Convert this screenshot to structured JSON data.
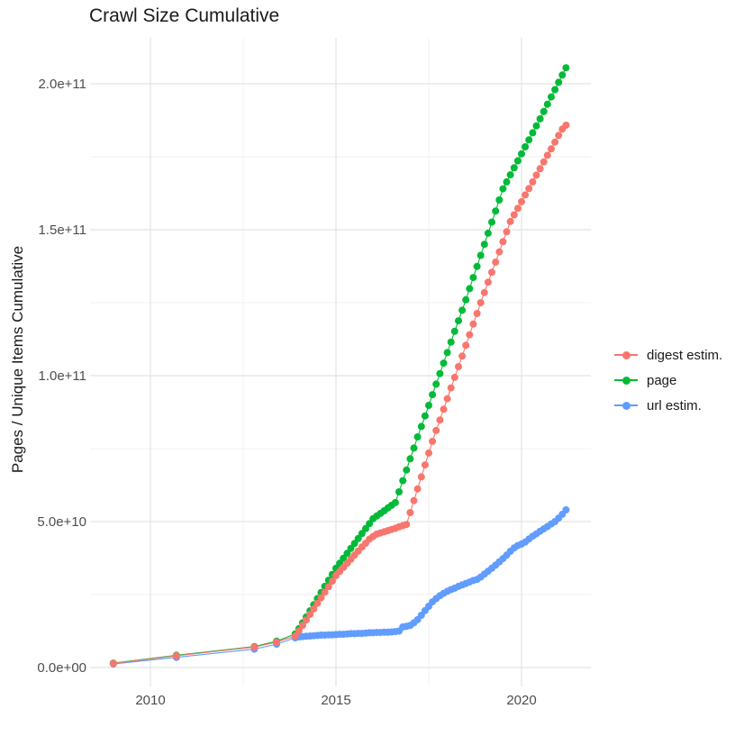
{
  "chart_data": {
    "type": "line",
    "title": "Crawl Size Cumulative",
    "xlabel": "",
    "ylabel": "Pages / Unique Items Cumulative",
    "grid": "on",
    "marker": "point",
    "x_range": [
      2008.4,
      2021.9
    ],
    "y_range": [
      -5000000000.0,
      216000000000.0
    ],
    "x_ticks": [
      {
        "value": 2010,
        "label": "2010"
      },
      {
        "value": 2015,
        "label": "2015"
      },
      {
        "value": 2020,
        "label": "2020"
      }
    ],
    "y_ticks": [
      {
        "value": 0.0,
        "label": "0.0e+00"
      },
      {
        "value": 50000000000.0,
        "label": "5.0e+10"
      },
      {
        "value": 100000000000.0,
        "label": "1.0e+11"
      },
      {
        "value": 150000000000.0,
        "label": "1.5e+11"
      },
      {
        "value": 200000000000.0,
        "label": "2.0e+11"
      }
    ],
    "legend": {
      "position": "right",
      "entries": [
        {
          "label": "digest estim.",
          "color": "#F8766D"
        },
        {
          "label": "page",
          "color": "#00BA38"
        },
        {
          "label": "url estim.",
          "color": "#619CFF"
        }
      ]
    },
    "series": [
      {
        "name": "digest estim.",
        "color": "#F8766D",
        "points": [
          [
            2009.0,
            1400000000.0
          ],
          [
            2010.7,
            4000000000.0
          ],
          [
            2012.8,
            7000000000.0
          ],
          [
            2013.4,
            8700000000.0
          ],
          [
            2013.9,
            10800000000.0
          ],
          [
            2014.0,
            12500000000.0
          ],
          [
            2014.1,
            14400000000.0
          ],
          [
            2014.2,
            16300000000.0
          ],
          [
            2014.3,
            18200000000.0
          ],
          [
            2014.4,
            20100000000.0
          ],
          [
            2014.5,
            22000000000.0
          ],
          [
            2014.6,
            23900000000.0
          ],
          [
            2014.7,
            25800000000.0
          ],
          [
            2014.8,
            27700000000.0
          ],
          [
            2014.9,
            29600000000.0
          ],
          [
            2015.0,
            31500000000.0
          ],
          [
            2015.1,
            32900000000.0
          ],
          [
            2015.2,
            34300000000.0
          ],
          [
            2015.3,
            35700000000.0
          ],
          [
            2015.4,
            37100000000.0
          ],
          [
            2015.5,
            38500000000.0
          ],
          [
            2015.6,
            39900000000.0
          ],
          [
            2015.7,
            41300000000.0
          ],
          [
            2015.8,
            42600000000.0
          ],
          [
            2015.9,
            44000000000.0
          ],
          [
            2016.0,
            44900000000.0
          ],
          [
            2016.1,
            45700000000.0
          ],
          [
            2016.2,
            46100000000.0
          ],
          [
            2016.3,
            46500000000.0
          ],
          [
            2016.4,
            46900000000.0
          ],
          [
            2016.5,
            47300000000.0
          ],
          [
            2016.6,
            47700000000.0
          ],
          [
            2016.7,
            48200000000.0
          ],
          [
            2016.8,
            48600000000.0
          ],
          [
            2016.9,
            49000000000.0
          ],
          [
            2017.0,
            53100000000.0
          ],
          [
            2017.1,
            57200000000.0
          ],
          [
            2017.2,
            61200000000.0
          ],
          [
            2017.3,
            65300000000.0
          ],
          [
            2017.4,
            69400000000.0
          ],
          [
            2017.5,
            73500000000.0
          ],
          [
            2017.6,
            77500000000.0
          ],
          [
            2017.7,
            81200000000.0
          ],
          [
            2017.8,
            84800000000.0
          ],
          [
            2017.9,
            88500000000.0
          ],
          [
            2018.0,
            92100000000.0
          ],
          [
            2018.1,
            95800000000.0
          ],
          [
            2018.2,
            99400000000.0
          ],
          [
            2018.3,
            103100000000.0
          ],
          [
            2018.4,
            106700000000.0
          ],
          [
            2018.5,
            110400000000.0
          ],
          [
            2018.6,
            114000000000.0
          ],
          [
            2018.7,
            117700000000.0
          ],
          [
            2018.8,
            121300000000.0
          ],
          [
            2018.9,
            125000000000.0
          ],
          [
            2019.0,
            128500000000.0
          ],
          [
            2019.1,
            132000000000.0
          ],
          [
            2019.2,
            135400000000.0
          ],
          [
            2019.3,
            138900000000.0
          ],
          [
            2019.4,
            142400000000.0
          ],
          [
            2019.5,
            145900000000.0
          ],
          [
            2019.6,
            149300000000.0
          ],
          [
            2019.7,
            152800000000.0
          ],
          [
            2019.8,
            155100000000.0
          ],
          [
            2019.9,
            157300000000.0
          ],
          [
            2020.0,
            159600000000.0
          ],
          [
            2020.1,
            161900000000.0
          ],
          [
            2020.2,
            164100000000.0
          ],
          [
            2020.3,
            166400000000.0
          ],
          [
            2020.4,
            168700000000.0
          ],
          [
            2020.5,
            170900000000.0
          ],
          [
            2020.6,
            173200000000.0
          ],
          [
            2020.7,
            175500000000.0
          ],
          [
            2020.8,
            177700000000.0
          ],
          [
            2020.9,
            180000000000.0
          ],
          [
            2021.0,
            182300000000.0
          ],
          [
            2021.1,
            184500000000.0
          ],
          [
            2021.2,
            185800000000.0
          ]
        ]
      },
      {
        "name": "page",
        "color": "#00BA38",
        "points": [
          [
            2009.0,
            1500000000.0
          ],
          [
            2010.7,
            4200000000.0
          ],
          [
            2012.8,
            7200000000.0
          ],
          [
            2013.4,
            9000000000.0
          ],
          [
            2013.9,
            11500000000.0
          ],
          [
            2014.0,
            13300000000.0
          ],
          [
            2014.1,
            15300000000.0
          ],
          [
            2014.2,
            17300000000.0
          ],
          [
            2014.3,
            19400000000.0
          ],
          [
            2014.4,
            21500000000.0
          ],
          [
            2014.5,
            23600000000.0
          ],
          [
            2014.6,
            25700000000.0
          ],
          [
            2014.7,
            27800000000.0
          ],
          [
            2014.8,
            29900000000.0
          ],
          [
            2014.9,
            31900000000.0
          ],
          [
            2015.0,
            34000000000.0
          ],
          [
            2015.1,
            35700000000.0
          ],
          [
            2015.2,
            37400000000.0
          ],
          [
            2015.3,
            39100000000.0
          ],
          [
            2015.4,
            40800000000.0
          ],
          [
            2015.5,
            42500000000.0
          ],
          [
            2015.6,
            44200000000.0
          ],
          [
            2015.7,
            45900000000.0
          ],
          [
            2015.8,
            47600000000.0
          ],
          [
            2015.9,
            49300000000.0
          ],
          [
            2016.0,
            51000000000.0
          ],
          [
            2016.1,
            51900000000.0
          ],
          [
            2016.2,
            52800000000.0
          ],
          [
            2016.3,
            53700000000.0
          ],
          [
            2016.4,
            54700000000.0
          ],
          [
            2016.5,
            55600000000.0
          ],
          [
            2016.6,
            56500000000.0
          ],
          [
            2016.7,
            60200000000.0
          ],
          [
            2016.8,
            64000000000.0
          ],
          [
            2016.9,
            67700000000.0
          ],
          [
            2017.0,
            71500000000.0
          ],
          [
            2017.1,
            75200000000.0
          ],
          [
            2017.2,
            79000000000.0
          ],
          [
            2017.3,
            82600000000.0
          ],
          [
            2017.4,
            86200000000.0
          ],
          [
            2017.5,
            89800000000.0
          ],
          [
            2017.6,
            93500000000.0
          ],
          [
            2017.7,
            97100000000.0
          ],
          [
            2017.8,
            100700000000.0
          ],
          [
            2017.9,
            104300000000.0
          ],
          [
            2018.0,
            107900000000.0
          ],
          [
            2018.1,
            111500000000.0
          ],
          [
            2018.2,
            115200000000.0
          ],
          [
            2018.3,
            118800000000.0
          ],
          [
            2018.4,
            122400000000.0
          ],
          [
            2018.5,
            126000000000.0
          ],
          [
            2018.6,
            129800000000.0
          ],
          [
            2018.7,
            133600000000.0
          ],
          [
            2018.8,
            137400000000.0
          ],
          [
            2018.9,
            141200000000.0
          ],
          [
            2019.0,
            145000000000.0
          ],
          [
            2019.1,
            148800000000.0
          ],
          [
            2019.2,
            152600000000.0
          ],
          [
            2019.3,
            156400000000.0
          ],
          [
            2019.4,
            160200000000.0
          ],
          [
            2019.5,
            164000000000.0
          ],
          [
            2019.6,
            166400000000.0
          ],
          [
            2019.7,
            168800000000.0
          ],
          [
            2019.8,
            171200000000.0
          ],
          [
            2019.9,
            173600000000.0
          ],
          [
            2020.0,
            176000000000.0
          ],
          [
            2020.1,
            178400000000.0
          ],
          [
            2020.2,
            180800000000.0
          ],
          [
            2020.3,
            183200000000.0
          ],
          [
            2020.4,
            185600000000.0
          ],
          [
            2020.5,
            188000000000.0
          ],
          [
            2020.6,
            190500000000.0
          ],
          [
            2020.7,
            193000000000.0
          ],
          [
            2020.8,
            195500000000.0
          ],
          [
            2020.9,
            198000000000.0
          ],
          [
            2021.0,
            200500000000.0
          ],
          [
            2021.1,
            203000000000.0
          ],
          [
            2021.2,
            205500000000.0
          ]
        ]
      },
      {
        "name": "url estim.",
        "color": "#619CFF",
        "points": [
          [
            2009.0,
            1200000000.0
          ],
          [
            2010.7,
            3500000000.0
          ],
          [
            2012.8,
            6300000000.0
          ],
          [
            2013.4,
            8000000000.0
          ],
          [
            2013.9,
            10200000000.0
          ],
          [
            2014.0,
            10500000000.0
          ],
          [
            2014.1,
            10600000000.0
          ],
          [
            2014.2,
            10700000000.0
          ],
          [
            2014.3,
            10800000000.0
          ],
          [
            2014.4,
            10900000000.0
          ],
          [
            2014.5,
            11000000000.0
          ],
          [
            2014.6,
            11100000000.0
          ],
          [
            2014.7,
            11100000000.0
          ],
          [
            2014.8,
            11200000000.0
          ],
          [
            2014.9,
            11200000000.0
          ],
          [
            2015.0,
            11300000000.0
          ],
          [
            2015.1,
            11400000000.0
          ],
          [
            2015.2,
            11400000000.0
          ],
          [
            2015.3,
            11500000000.0
          ],
          [
            2015.4,
            11600000000.0
          ],
          [
            2015.5,
            11600000000.0
          ],
          [
            2015.6,
            11700000000.0
          ],
          [
            2015.7,
            11700000000.0
          ],
          [
            2015.8,
            11800000000.0
          ],
          [
            2015.9,
            11900000000.0
          ],
          [
            2016.0,
            11900000000.0
          ],
          [
            2016.1,
            12000000000.0
          ],
          [
            2016.2,
            12000000000.0
          ],
          [
            2016.3,
            12100000000.0
          ],
          [
            2016.4,
            12100000000.0
          ],
          [
            2016.5,
            12200000000.0
          ],
          [
            2016.6,
            12300000000.0
          ],
          [
            2016.7,
            12500000000.0
          ],
          [
            2016.8,
            13900000000.0
          ],
          [
            2016.9,
            14100000000.0
          ],
          [
            2017.0,
            14400000000.0
          ],
          [
            2017.1,
            15300000000.0
          ],
          [
            2017.2,
            16400000000.0
          ],
          [
            2017.3,
            17900000000.0
          ],
          [
            2017.4,
            19500000000.0
          ],
          [
            2017.5,
            21000000000.0
          ],
          [
            2017.6,
            22500000000.0
          ],
          [
            2017.7,
            23600000000.0
          ],
          [
            2017.8,
            24600000000.0
          ],
          [
            2017.9,
            25400000000.0
          ],
          [
            2018.0,
            26100000000.0
          ],
          [
            2018.1,
            26700000000.0
          ],
          [
            2018.2,
            27200000000.0
          ],
          [
            2018.3,
            27800000000.0
          ],
          [
            2018.4,
            28300000000.0
          ],
          [
            2018.5,
            28800000000.0
          ],
          [
            2018.6,
            29300000000.0
          ],
          [
            2018.7,
            29800000000.0
          ],
          [
            2018.8,
            30200000000.0
          ],
          [
            2018.9,
            31000000000.0
          ],
          [
            2019.0,
            32000000000.0
          ],
          [
            2019.1,
            33000000000.0
          ],
          [
            2019.2,
            34000000000.0
          ],
          [
            2019.3,
            35100000000.0
          ],
          [
            2019.4,
            36200000000.0
          ],
          [
            2019.5,
            37300000000.0
          ],
          [
            2019.6,
            38500000000.0
          ],
          [
            2019.7,
            39800000000.0
          ],
          [
            2019.8,
            41000000000.0
          ],
          [
            2019.9,
            41800000000.0
          ],
          [
            2020.0,
            42300000000.0
          ],
          [
            2020.1,
            43000000000.0
          ],
          [
            2020.2,
            44000000000.0
          ],
          [
            2020.3,
            45000000000.0
          ],
          [
            2020.4,
            45800000000.0
          ],
          [
            2020.5,
            46700000000.0
          ],
          [
            2020.6,
            47500000000.0
          ],
          [
            2020.7,
            48300000000.0
          ],
          [
            2020.8,
            49200000000.0
          ],
          [
            2020.9,
            50000000000.0
          ],
          [
            2021.0,
            51200000000.0
          ],
          [
            2021.1,
            52500000000.0
          ],
          [
            2021.2,
            54000000000.0
          ]
        ]
      }
    ]
  }
}
